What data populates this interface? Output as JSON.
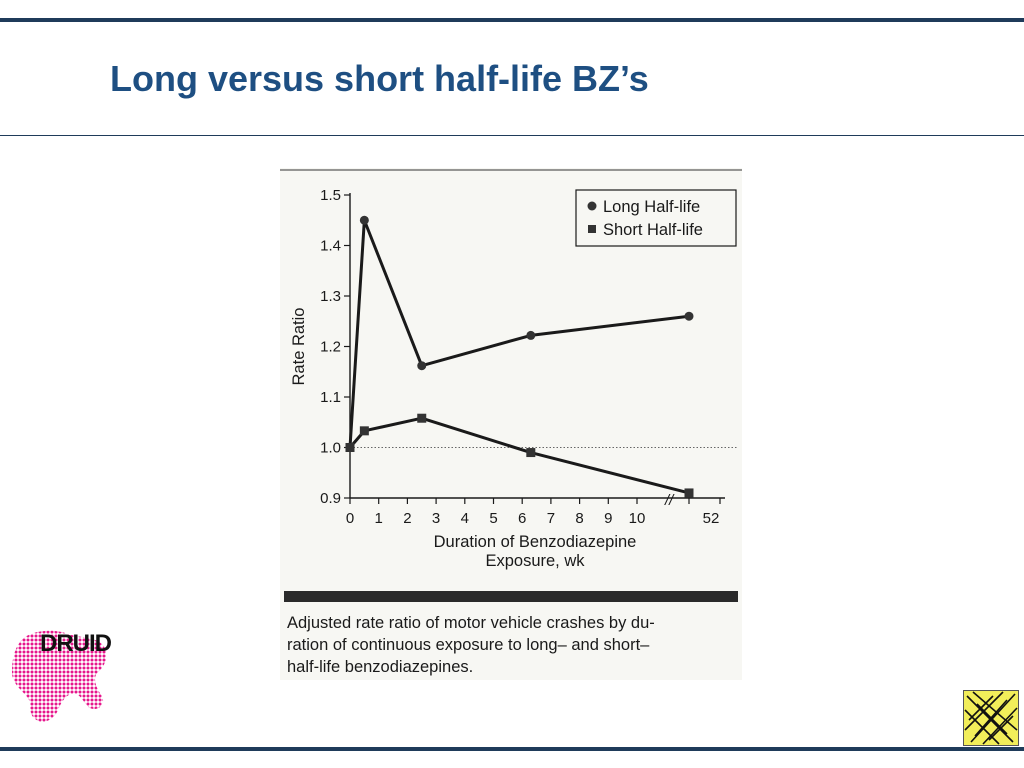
{
  "slide": {
    "title": "Long versus short half-life BZ’s"
  },
  "chart_data": {
    "type": "line",
    "title": "",
    "xlabel_lines": [
      "Duration of Benzodiazepine",
      "Exposure, wk"
    ],
    "ylabel": "Rate Ratio",
    "ylim": [
      0.9,
      1.5
    ],
    "yticks": [
      "1.5",
      "1.4",
      "1.3",
      "1.2",
      "1.1",
      "1.0",
      "0.9"
    ],
    "xticks": [
      "0",
      "1",
      "2",
      "3",
      "4",
      "5",
      "6",
      "7",
      "8",
      "9",
      "10",
      "52"
    ],
    "axis_break": "//",
    "reference_line": 1.0,
    "legend_position": "top-right",
    "series": [
      {
        "name": "Long Half-life",
        "marker": "circle",
        "x": [
          0,
          0.5,
          2.5,
          6.3,
          52
        ],
        "y": [
          1.0,
          1.45,
          1.162,
          1.222,
          1.26
        ]
      },
      {
        "name": "Short Half-life",
        "marker": "square",
        "x": [
          0,
          0.5,
          2.5,
          6.3,
          52
        ],
        "y": [
          1.0,
          1.033,
          1.058,
          0.99,
          0.91
        ]
      }
    ]
  },
  "caption": {
    "lines": [
      "Adjusted rate ratio of motor vehicle crashes by du-",
      "ration of continuous exposure to long– and short–",
      "half-life benzodiazepines."
    ]
  },
  "logo": {
    "text": "DRUID",
    "color": "#e6168c"
  },
  "colors": {
    "title": "#1e4f82",
    "rule": "#1f3b5a",
    "ink": "#1a1a1a"
  }
}
